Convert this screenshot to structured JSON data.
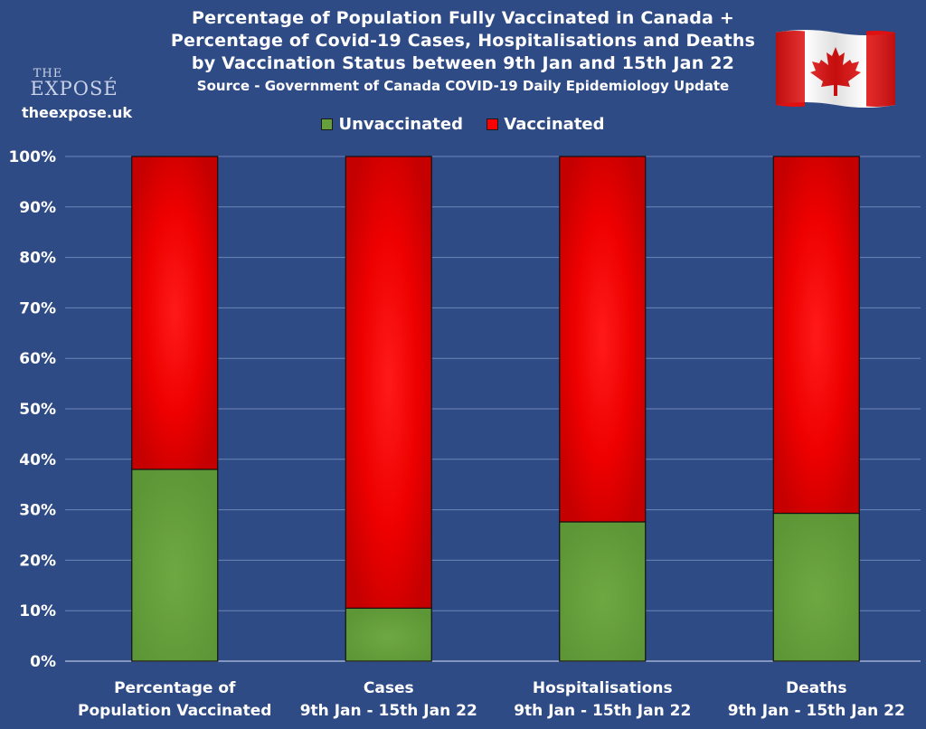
{
  "header": {
    "title_lines": [
      "Percentage of Population Fully Vaccinated in Canada +",
      "Percentage of Covid-19 Cases, Hospitalisations and Deaths",
      "by Vaccination Status between 9th Jan and 15th Jan 22"
    ],
    "subtitle": "Source - Government of Canada COVID-19 Daily Epidemiology Update"
  },
  "brand": {
    "logo_the": "THE",
    "logo_name": "EXPOSÉ",
    "site": "theexpose.uk"
  },
  "colors": {
    "background": "#2f4b86",
    "unvaccinated": "#65a03c",
    "vaccinated": "#ff0000",
    "gridline": "#6d86b8"
  },
  "chart_data": {
    "type": "bar",
    "stacked": true,
    "normalized_percent": true,
    "categories": [
      [
        "Percentage of",
        "Population Vaccinated"
      ],
      [
        "Cases",
        "9th Jan - 15th Jan 22"
      ],
      [
        "Hospitalisations",
        "9th Jan - 15th Jan 22"
      ],
      [
        "Deaths",
        "9th Jan - 15th Jan 22"
      ]
    ],
    "series": [
      {
        "name": "Unvaccinated",
        "values": [
          38,
          10.5,
          27.6,
          29.3
        ]
      },
      {
        "name": "Vaccinated",
        "values": [
          62,
          89.5,
          72.4,
          70.7
        ]
      }
    ],
    "ylim": [
      0,
      100
    ],
    "yticks": [
      "0%",
      "10%",
      "20%",
      "30%",
      "40%",
      "50%",
      "60%",
      "70%",
      "80%",
      "90%",
      "100%"
    ],
    "grid": true,
    "legend_position": "top-center"
  }
}
